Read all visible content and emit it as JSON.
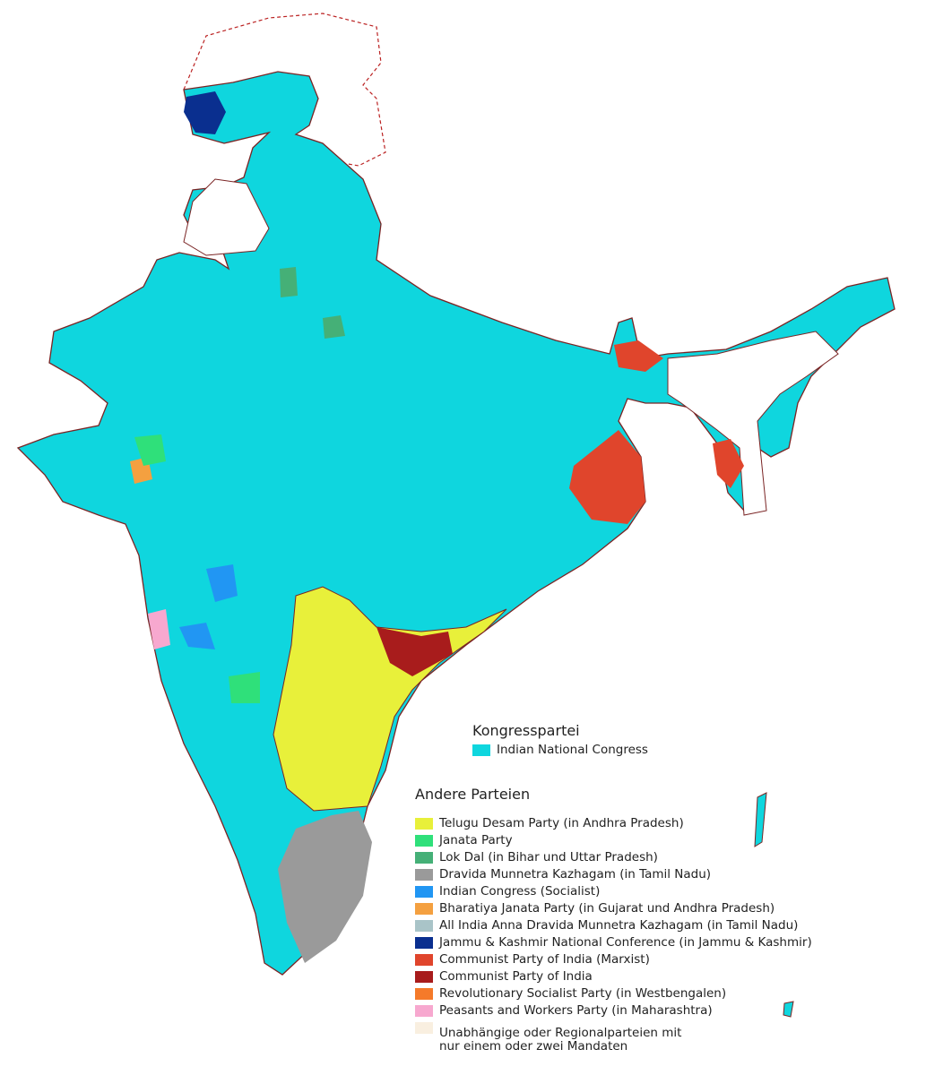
{
  "legend": {
    "groups": [
      {
        "title": "Kongresspartei",
        "items": [
          {
            "label": "Indian National Congress",
            "color": "#0fd6de"
          }
        ]
      },
      {
        "title": "Andere Parteien",
        "items": [
          {
            "label": "Telugu Desam Party (in Andhra Pradesh)",
            "color": "#e8f03a"
          },
          {
            "label": "Janata Party",
            "color": "#2fe07a"
          },
          {
            "label": "Lok Dal (in Bihar und Uttar Pradesh)",
            "color": "#45b077"
          },
          {
            "label": "Dravida Munnetra Kazhagam (in Tamil Nadu)",
            "color": "#9a9a9a"
          },
          {
            "label": "Indian Congress (Socialist)",
            "color": "#2196f3"
          },
          {
            "label": "Bharatiya Janata Party (in Gujarat und Andhra Pradesh)",
            "color": "#f4a040"
          },
          {
            "label": "All India Anna Dravida Munnetra Kazhagam (in Tamil Nadu)",
            "color": "#a9c4c8"
          },
          {
            "label": "Jammu & Kashmir National Conference (in Jammu & Kashmir)",
            "color": "#0a2f8f"
          },
          {
            "label": "Communist Party of India (Marxist)",
            "color": "#e0452c"
          },
          {
            "label": "Communist Party of India",
            "color": "#a81c1c"
          },
          {
            "label": "Revolutionary Socialist Party (in Westbengalen)",
            "color": "#f57a2a"
          },
          {
            "label": "Peasants and Workers Party (in Maharashtra)",
            "color": "#f7a8cf"
          },
          {
            "label": "Unabhängige oder Regionalparteien mit nur einem oder zwei Mandaten",
            "color": "#f9efe0"
          }
        ]
      }
    ]
  }
}
